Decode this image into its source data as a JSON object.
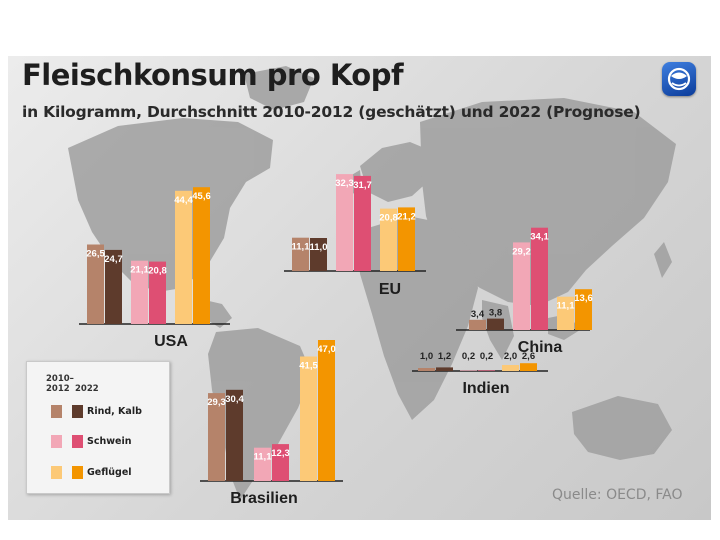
{
  "title": "Fleischkonsum pro Kopf",
  "subtitle": "in Kilogramm, Durchschnitt 2010-2012 (geschätzt) und 2022 (Prognose)",
  "source": "Quelle: OECD, FAO",
  "logo": "tagesschau-logo-icon",
  "legend": {
    "period_1": "2010–\n2012",
    "period_2": "2022",
    "items": [
      {
        "label": "Rind, Kalb"
      },
      {
        "label": "Schwein"
      },
      {
        "label": "Geflügel"
      }
    ]
  },
  "colors": {
    "rind_2012": "#b5836a",
    "rind_2022": "#5e3b2c",
    "schwein_2012": "#f2a7b6",
    "schwein_2022": "#de4f73",
    "gefluegel_2012": "#fcc977",
    "gefluegel_2022": "#f39500",
    "map": "#9a9a9a",
    "label_light": "#ffffff",
    "label_dark": "#222222"
  },
  "chart_data": {
    "type": "bar",
    "unit": "kg",
    "periods": [
      "2010–2012",
      "2022"
    ],
    "categories": [
      "Rind, Kalb",
      "Schwein",
      "Geflügel"
    ],
    "regions": [
      {
        "name": "USA",
        "values": {
          "Rind, Kalb": [
            26.5,
            24.7
          ],
          "Schwein": [
            21.1,
            20.8
          ],
          "Geflügel": [
            44.4,
            45.6
          ]
        },
        "labels": {
          "Rind, Kalb": [
            "26,5",
            "24,7"
          ],
          "Schwein": [
            "21,1",
            "20,8"
          ],
          "Geflügel": [
            "44,4",
            "45,6"
          ]
        }
      },
      {
        "name": "EU",
        "values": {
          "Rind, Kalb": [
            11.1,
            11.0
          ],
          "Schwein": [
            32.3,
            31.7
          ],
          "Geflügel": [
            20.8,
            21.2
          ]
        },
        "labels": {
          "Rind, Kalb": [
            "11,1",
            "11,0"
          ],
          "Schwein": [
            "32,3",
            "31,7"
          ],
          "Geflügel": [
            "20,8",
            "21,2"
          ]
        }
      },
      {
        "name": "China",
        "values": {
          "Rind, Kalb": [
            3.4,
            3.8
          ],
          "Schwein": [
            29.2,
            34.1
          ],
          "Geflügel": [
            11.1,
            13.6
          ]
        },
        "labels": {
          "Rind, Kalb": [
            "3,4",
            "3,8"
          ],
          "Schwein": [
            "29,2",
            "34,1"
          ],
          "Geflügel": [
            "11,1",
            "13,6"
          ]
        }
      },
      {
        "name": "Indien",
        "values": {
          "Rind, Kalb": [
            1.0,
            1.2
          ],
          "Schwein": [
            0.2,
            0.2
          ],
          "Geflügel": [
            2.0,
            2.6
          ]
        },
        "labels": {
          "Rind, Kalb": [
            "1,0",
            "1,2"
          ],
          "Schwein": [
            "0,2",
            "0,2"
          ],
          "Geflügel": [
            "2,0",
            "2,6"
          ]
        }
      },
      {
        "name": "Brasilien",
        "values": {
          "Rind, Kalb": [
            29.3,
            30.4
          ],
          "Schwein": [
            11.1,
            12.3
          ],
          "Geflügel": [
            41.5,
            47.0
          ]
        },
        "labels": {
          "Rind, Kalb": [
            "29,3",
            "30,4"
          ],
          "Schwein": [
            "11,1",
            "12,3"
          ],
          "Geflügel": [
            "41,5",
            "47,0"
          ]
        }
      }
    ]
  }
}
